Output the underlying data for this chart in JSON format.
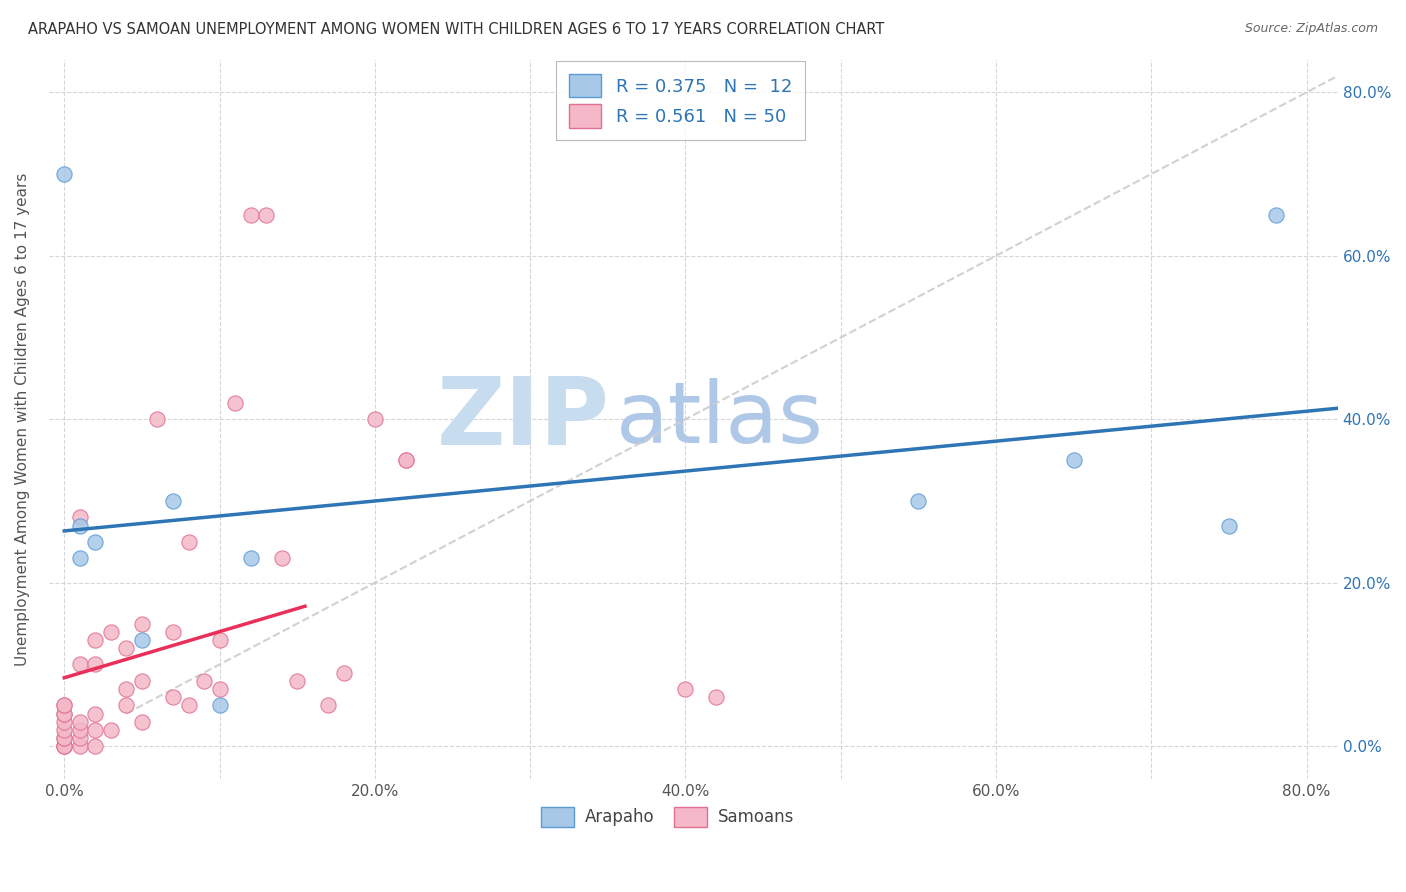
{
  "title": "ARAPAHO VS SAMOAN UNEMPLOYMENT AMONG WOMEN WITH CHILDREN AGES 6 TO 17 YEARS CORRELATION CHART",
  "source": "Source: ZipAtlas.com",
  "ylabel": "Unemployment Among Women with Children Ages 6 to 17 years",
  "arapaho_R": "0.375",
  "arapaho_N": "12",
  "samoan_R": "0.561",
  "samoan_N": "50",
  "arapaho_color": "#A8C8E8",
  "samoan_color": "#F4B8C8",
  "arapaho_edge_color": "#5B9BD5",
  "samoan_edge_color": "#E07090",
  "arapaho_line_color": "#2E75B6",
  "samoan_line_color": "#E8305A",
  "diagonal_color": "#CCCCCC",
  "watermark_zip_color": "#C8DCF0",
  "watermark_atlas_color": "#B0C8E8",
  "background_color": "#FFFFFF",
  "right_axis_color": "#2E75B6",
  "tick_label_color": "#555555",
  "xtick_labels": [
    "0.0%",
    "",
    "20.0%",
    "",
    "40.0%",
    "",
    "60.0%",
    "",
    "80.0%"
  ],
  "ytick_labels_right": [
    "0.0%",
    "20.0%",
    "40.0%",
    "60.0%",
    "80.0%"
  ],
  "xtick_vals": [
    0.0,
    0.1,
    0.2,
    0.3,
    0.4,
    0.5,
    0.6,
    0.7,
    0.8
  ],
  "ytick_vals": [
    0.0,
    0.2,
    0.4,
    0.6,
    0.8
  ],
  "arapaho_x": [
    0.0,
    0.01,
    0.01,
    0.02,
    0.05,
    0.07,
    0.1,
    0.12,
    0.55,
    0.65,
    0.75,
    0.78
  ],
  "arapaho_y": [
    0.7,
    0.27,
    0.23,
    0.25,
    0.13,
    0.3,
    0.05,
    0.23,
    0.3,
    0.35,
    0.27,
    0.65
  ],
  "samoan_x": [
    0.0,
    0.0,
    0.0,
    0.0,
    0.0,
    0.0,
    0.0,
    0.0,
    0.0,
    0.0,
    0.0,
    0.01,
    0.01,
    0.01,
    0.01,
    0.01,
    0.01,
    0.02,
    0.02,
    0.02,
    0.02,
    0.02,
    0.03,
    0.03,
    0.04,
    0.04,
    0.04,
    0.05,
    0.05,
    0.05,
    0.06,
    0.07,
    0.07,
    0.08,
    0.08,
    0.09,
    0.1,
    0.1,
    0.11,
    0.12,
    0.13,
    0.14,
    0.15,
    0.17,
    0.18,
    0.2,
    0.22,
    0.22,
    0.4,
    0.42
  ],
  "samoan_y": [
    0.0,
    0.0,
    0.0,
    0.01,
    0.01,
    0.02,
    0.03,
    0.04,
    0.04,
    0.05,
    0.05,
    0.0,
    0.01,
    0.02,
    0.03,
    0.1,
    0.28,
    0.0,
    0.02,
    0.04,
    0.1,
    0.13,
    0.02,
    0.14,
    0.05,
    0.07,
    0.12,
    0.03,
    0.08,
    0.15,
    0.4,
    0.06,
    0.14,
    0.05,
    0.25,
    0.08,
    0.07,
    0.13,
    0.42,
    0.65,
    0.65,
    0.23,
    0.08,
    0.05,
    0.09,
    0.4,
    0.35,
    0.35,
    0.07,
    0.06
  ],
  "samoan_line_x_start": 0.0,
  "samoan_line_x_end": 0.155,
  "xlim": [
    -0.01,
    0.82
  ],
  "ylim": [
    -0.04,
    0.84
  ]
}
